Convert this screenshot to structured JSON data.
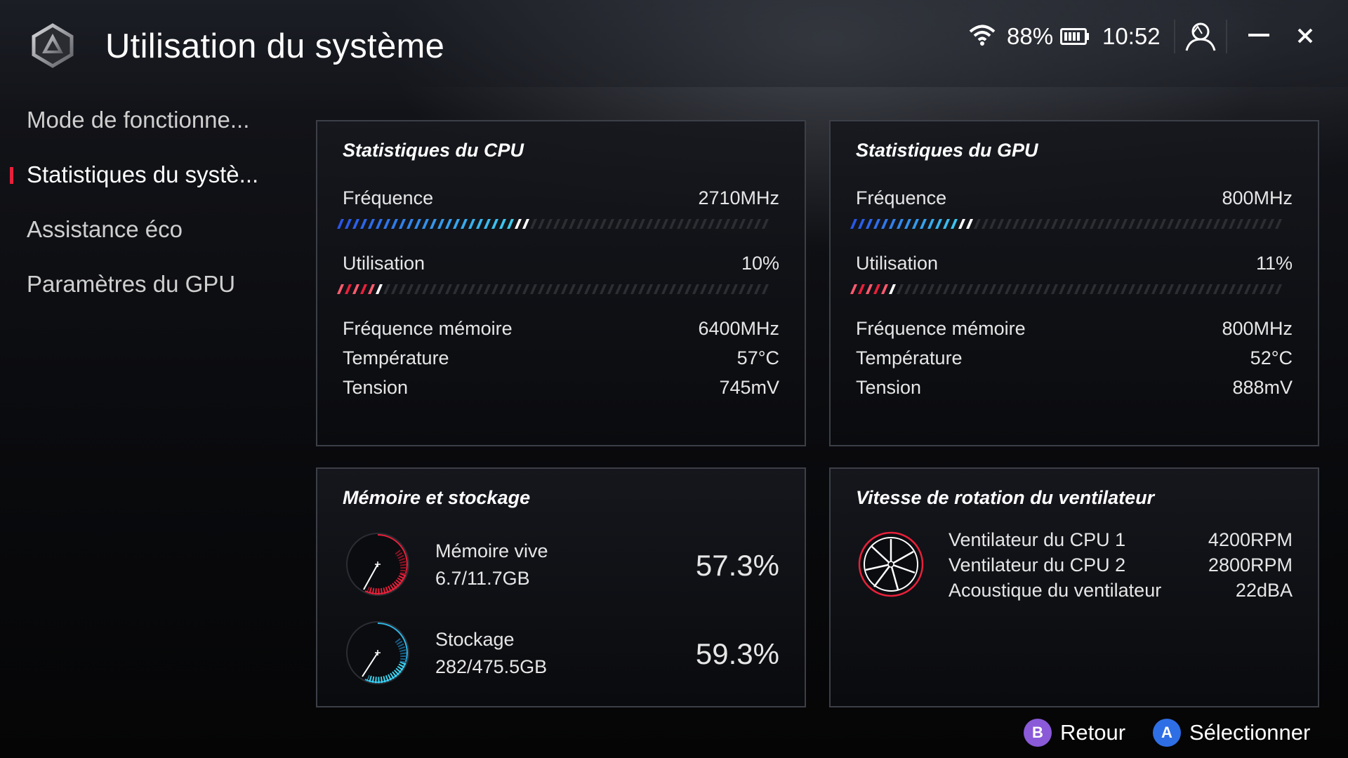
{
  "app": {
    "title": "Utilisation du système"
  },
  "status": {
    "battery_percent": "88%",
    "time": "10:52"
  },
  "sidebar": {
    "items": [
      {
        "label": "Mode de fonctionne..."
      },
      {
        "label": "Statistiques du systè...",
        "active": true
      },
      {
        "label": "Assistance éco"
      },
      {
        "label": "Paramètres du GPU"
      }
    ]
  },
  "cpu": {
    "title": "Statistiques du CPU",
    "frequency_label": "Fréquence",
    "frequency_value": "2710MHz",
    "frequency_fill": 0.45,
    "usage_label": "Utilisation",
    "usage_value": "10%",
    "usage_fill": 0.1,
    "mem_freq_label": "Fréquence mémoire",
    "mem_freq_value": "6400MHz",
    "temp_label": "Température",
    "temp_value": "57°C",
    "voltage_label": "Tension",
    "voltage_value": "745mV"
  },
  "gpu": {
    "title": "Statistiques du GPU",
    "frequency_label": "Fréquence",
    "frequency_value": "800MHz",
    "frequency_fill": 0.28,
    "usage_label": "Utilisation",
    "usage_value": "11%",
    "usage_fill": 0.11,
    "mem_freq_label": "Fréquence mémoire",
    "mem_freq_value": "800MHz",
    "temp_label": "Température",
    "temp_value": "52°C",
    "voltage_label": "Tension",
    "voltage_value": "888mV"
  },
  "memory": {
    "title": "Mémoire et stockage",
    "ram_label": "Mémoire vive",
    "ram_detail": "6.7/11.7GB",
    "ram_percent": "57.3%",
    "storage_label": "Stockage",
    "storage_detail": "282/475.5GB",
    "storage_percent": "59.3%"
  },
  "fans": {
    "title": "Vitesse de rotation du ventilateur",
    "fan1_label": "Ventilateur du CPU 1",
    "fan1_value": "4200RPM",
    "fan2_label": "Ventilateur du CPU 2",
    "fan2_value": "2800RPM",
    "acoustic_label": "Acoustique du ventilateur",
    "acoustic_value": "22dBA"
  },
  "footer": {
    "back_label": "Retour",
    "select_label": "Sélectionner"
  },
  "colors": {
    "accent_red": "#e8203a",
    "bar_blue": "#2a55e8",
    "bar_cyan": "#3fd6f0",
    "btn_purple": "#8a5ad8",
    "btn_blue": "#2f6fe6"
  }
}
